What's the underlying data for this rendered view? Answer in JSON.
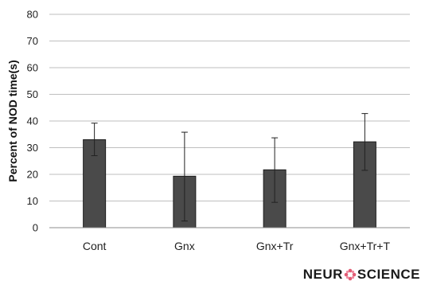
{
  "chart_data": {
    "type": "bar",
    "title": "",
    "xlabel": "",
    "ylabel": "Percent of NOD time(s)",
    "ylim": [
      0,
      80
    ],
    "yticks": [
      0,
      10,
      20,
      30,
      40,
      50,
      60,
      70,
      80
    ],
    "grid": true,
    "legend": "none",
    "categories": [
      "Cont",
      "Gnx",
      "Gnx+Tr",
      "Gnx+Tr+T"
    ],
    "values": [
      33,
      19.3,
      21.7,
      32.2
    ],
    "error_bars": [
      {
        "low": 27,
        "high": 39.2
      },
      {
        "low": 2.5,
        "high": 35.8
      },
      {
        "low": 9.5,
        "high": 33.7
      },
      {
        "low": 21.5,
        "high": 42.8
      }
    ],
    "bar_color": "#4a4a4a"
  },
  "watermark": {
    "text_before": "NEUR",
    "text_after": "SCIENCE"
  }
}
